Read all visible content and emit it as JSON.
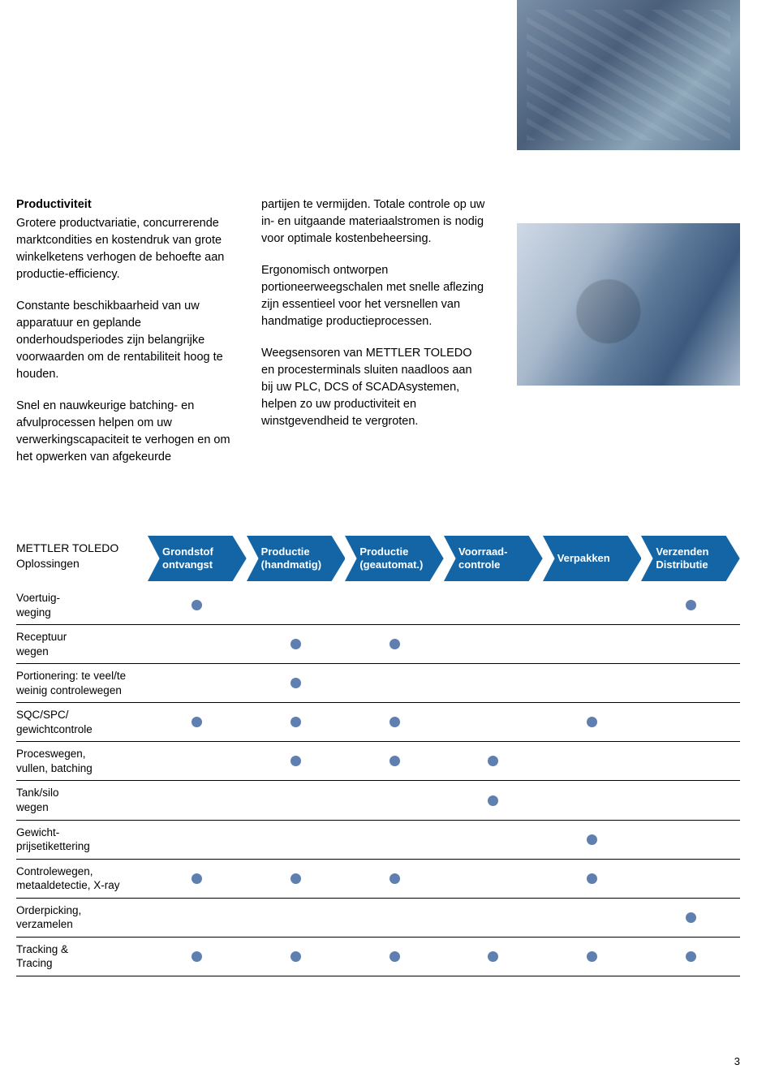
{
  "colors": {
    "arrow_fill": "#1365a6",
    "dot_fill": "#5f7fb0",
    "row_border": "#000000",
    "text": "#000000",
    "white": "#ffffff"
  },
  "text_columns": {
    "left": {
      "heading": "Productiviteit",
      "p1": "Grotere productvariatie, concurrerende marktcondities en kostendruk van grote winkelketens verhogen de behoefte aan productie-efficiency.",
      "p2": "Constante beschikbaarheid van uw apparatuur en geplande onderhoudsperiodes zijn belangrijke voorwaarden om de rentabiliteit hoog te houden.",
      "p3": "Snel en nauwkeurige batching- en afvulprocessen helpen om uw verwerkingscapaciteit te verhogen en om het opwerken van afgekeurde"
    },
    "right": {
      "p1": "partijen te vermijden. Totale controle op uw in- en uitgaande materiaalstromen is nodig voor optimale kostenbeheersing.",
      "p2": "Ergonomisch ontworpen portioneerweegschalen met snelle aflezing zijn essentieel voor het versnellen van handmatige productieprocessen.",
      "p3": "Weegsensoren van METTLER TOLEDO en procesterminals sluiten naadloos aan bij uw PLC, DCS of SCADAsystemen, helpen zo uw productiviteit en winstgevendheid te vergroten."
    }
  },
  "matrix": {
    "title": "METTLER TOLEDO\nOplossingen",
    "columns": [
      "Grondstof\nontvangst",
      "Productie\n(handmatig)",
      "Productie\n(geautomat.)",
      "Voorraad-\ncontrole",
      "Verpakken",
      "Verzenden\nDistributie"
    ],
    "rows": [
      {
        "label": "Voertuig-\nweging",
        "dots": [
          1,
          0,
          0,
          0,
          0,
          1
        ]
      },
      {
        "label": "Receptuur\nwegen",
        "dots": [
          0,
          1,
          1,
          0,
          0,
          0
        ]
      },
      {
        "label": "Portionering: te veel/te\nweinig controlewegen",
        "dots": [
          0,
          1,
          0,
          0,
          0,
          0
        ]
      },
      {
        "label": "SQC/SPC/\ngewichtcontrole",
        "dots": [
          1,
          1,
          1,
          0,
          1,
          0
        ]
      },
      {
        "label": "Proceswegen,\nvullen, batching",
        "dots": [
          0,
          1,
          1,
          1,
          0,
          0
        ]
      },
      {
        "label": "Tank/silo\nwegen",
        "dots": [
          0,
          0,
          0,
          1,
          0,
          0
        ]
      },
      {
        "label": "Gewicht-\nprijsetikettering",
        "dots": [
          0,
          0,
          0,
          0,
          1,
          0
        ]
      },
      {
        "label": "Controlewegen,\nmetaaldetectie, X-ray",
        "dots": [
          1,
          1,
          1,
          0,
          1,
          0
        ]
      },
      {
        "label": "Orderpicking,\nverzamelen",
        "dots": [
          0,
          0,
          0,
          0,
          0,
          1
        ]
      },
      {
        "label": "Tracking &\nTracing",
        "dots": [
          1,
          1,
          1,
          1,
          1,
          1
        ]
      }
    ]
  },
  "page_number": "3"
}
